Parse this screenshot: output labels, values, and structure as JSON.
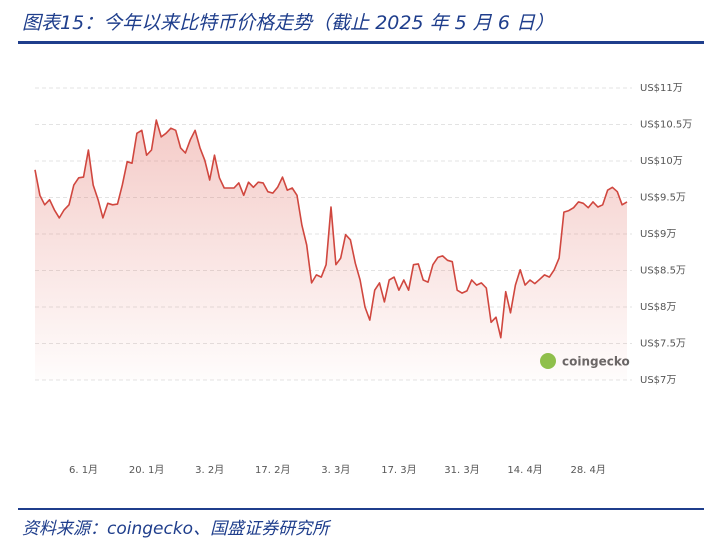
{
  "chart_data": {
    "type": "line",
    "title": "图表15：今年以来比特币价格走势（截止 2025 年 5 月 6 日）",
    "source": "资料来源：coingecko、国盛证券研究所",
    "watermark": "coingecko",
    "color": "#d0473f",
    "grid": true,
    "ylim": [
      7,
      11
    ],
    "yticks": [
      {
        "value": 7,
        "label": "US$7万"
      },
      {
        "value": 7.5,
        "label": "US$7.5万"
      },
      {
        "value": 8,
        "label": "US$8万"
      },
      {
        "value": 8.5,
        "label": "US$8.5万"
      },
      {
        "value": 9,
        "label": "US$9万"
      },
      {
        "value": 9.5,
        "label": "US$9.5万"
      },
      {
        "value": 10,
        "label": "US$10万"
      },
      {
        "value": 10.5,
        "label": "US$10.5万"
      },
      {
        "value": 11,
        "label": "US$11万"
      }
    ],
    "categories": [
      null,
      null,
      null,
      null,
      null,
      null,
      null,
      null,
      null,
      null,
      "6. 1月",
      null,
      null,
      null,
      null,
      null,
      null,
      null,
      null,
      null,
      null,
      null,
      null,
      "20. 1月",
      null,
      null,
      null,
      null,
      null,
      null,
      null,
      null,
      null,
      null,
      null,
      null,
      "3. 2月",
      null,
      null,
      null,
      null,
      null,
      null,
      null,
      null,
      null,
      null,
      null,
      null,
      "17. 2月",
      null,
      null,
      null,
      null,
      null,
      null,
      null,
      null,
      null,
      null,
      null,
      null,
      "3. 3月",
      null,
      null,
      null,
      null,
      null,
      null,
      null,
      null,
      null,
      null,
      null,
      null,
      "17. 3月",
      null,
      null,
      null,
      null,
      null,
      null,
      null,
      null,
      null,
      null,
      null,
      null,
      "31. 3月",
      null,
      null,
      null,
      null,
      null,
      null,
      null,
      null,
      null,
      null,
      null,
      null,
      "14. 4月",
      null,
      null,
      null,
      null,
      null,
      null,
      null,
      null,
      null,
      null,
      null,
      null,
      "28. 4月",
      null,
      null,
      null,
      null,
      null,
      null,
      null,
      null
    ],
    "values": [
      9.88,
      9.53,
      9.4,
      9.47,
      9.33,
      9.22,
      9.33,
      9.4,
      9.67,
      9.77,
      9.78,
      10.15,
      9.67,
      9.47,
      9.22,
      9.42,
      9.4,
      9.41,
      9.67,
      9.99,
      9.97,
      10.38,
      10.42,
      10.08,
      10.15,
      10.56,
      10.33,
      10.38,
      10.45,
      10.42,
      10.18,
      10.11,
      10.29,
      10.42,
      10.18,
      10.01,
      9.74,
      10.08,
      9.77,
      9.63,
      9.63,
      9.63,
      9.7,
      9.53,
      9.71,
      9.64,
      9.71,
      9.7,
      9.58,
      9.56,
      9.64,
      9.78,
      9.6,
      9.63,
      9.53,
      9.12,
      8.85,
      8.33,
      8.44,
      8.41,
      8.58,
      9.37,
      8.58,
      8.67,
      8.99,
      8.92,
      8.6,
      8.37,
      8.0,
      7.82,
      8.23,
      8.33,
      8.07,
      8.37,
      8.41,
      8.23,
      8.37,
      8.23,
      8.58,
      8.59,
      8.37,
      8.34,
      8.58,
      8.68,
      8.7,
      8.64,
      8.62,
      8.23,
      8.19,
      8.22,
      8.37,
      8.3,
      8.33,
      8.26,
      7.79,
      7.86,
      7.58,
      8.21,
      7.92,
      8.3,
      8.51,
      8.3,
      8.37,
      8.32,
      8.38,
      8.44,
      8.41,
      8.51,
      8.67,
      9.3,
      9.32,
      9.36,
      9.44,
      9.42,
      9.36,
      9.44,
      9.37,
      9.4,
      9.6,
      9.64,
      9.58,
      9.4,
      9.44
    ]
  }
}
